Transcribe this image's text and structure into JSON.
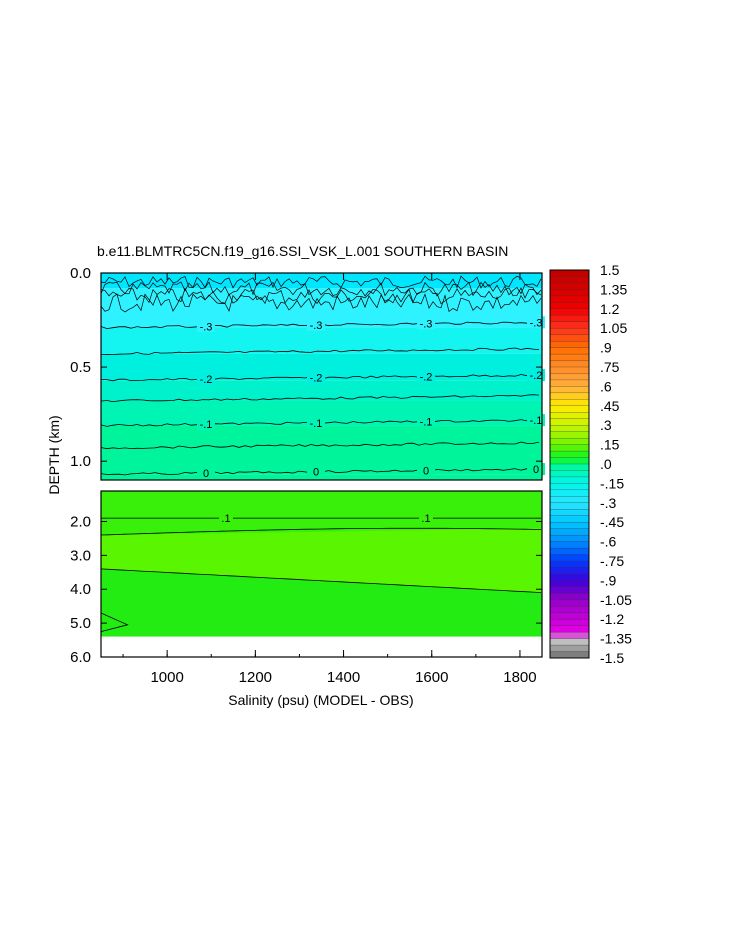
{
  "chart_data": {
    "type": "contour",
    "title": "b.e11.BLMTRC5CN.f19_g16.SSI_VSK_L.001 SOUTHERN BASIN",
    "xlabel": "Salinity (psu) (MODEL - OBS)",
    "ylabel": "DEPTH (km)",
    "xlim": [
      850,
      1850
    ],
    "x_ticks": [
      "1000",
      "1200",
      "1400",
      "1600",
      "1800"
    ],
    "panels": [
      {
        "name": "upper",
        "ylim": [
          0.0,
          1.1
        ],
        "y_ticks": [
          "0.0",
          "0.5",
          "1.0"
        ],
        "fill_levels": [
          -0.35,
          -0.3,
          -0.25,
          -0.2,
          -0.15,
          -0.1,
          -0.05,
          0.0
        ],
        "contours": [
          {
            "level": -0.3,
            "label": "-.3",
            "depth": 0.29
          },
          {
            "level": -0.25,
            "label": "",
            "depth": 0.43
          },
          {
            "level": -0.2,
            "label": "-.2",
            "depth": 0.57
          },
          {
            "level": -0.15,
            "label": "",
            "depth": 0.68
          },
          {
            "level": -0.1,
            "label": "-.1",
            "depth": 0.81
          },
          {
            "level": -0.05,
            "label": "",
            "depth": 0.93
          },
          {
            "level": 0.0,
            "label": "0",
            "depth": 1.07
          }
        ]
      },
      {
        "name": "lower",
        "ylim": [
          1.1,
          6.0
        ],
        "y_ticks": [
          "2.0",
          "3.0",
          "4.0",
          "5.0",
          "6.0"
        ],
        "data_max_depth": 5.4,
        "contours": [
          {
            "level": 0.1,
            "label": ".1",
            "depth_left": 1.9,
            "depth_right": 1.9
          },
          {
            "level": 0.15,
            "label": "",
            "depth_left": 2.4,
            "depth_right": 2.2
          },
          {
            "level": 0.2,
            "label": "",
            "depth_left": 3.4,
            "depth_right": 4.1
          }
        ]
      }
    ],
    "colorbar": {
      "labels": [
        "1.5",
        "1.35",
        "1.2",
        "1.05",
        ".9",
        ".75",
        ".6",
        ".45",
        ".3",
        ".15",
        ".0",
        "-.15",
        "-.3",
        "-.45",
        "-.6",
        "-.75",
        "-.9",
        "-1.05",
        "-1.2",
        "-1.35",
        "-1.5"
      ],
      "min": -1.5,
      "max": 1.5,
      "step": 0.05
    }
  }
}
